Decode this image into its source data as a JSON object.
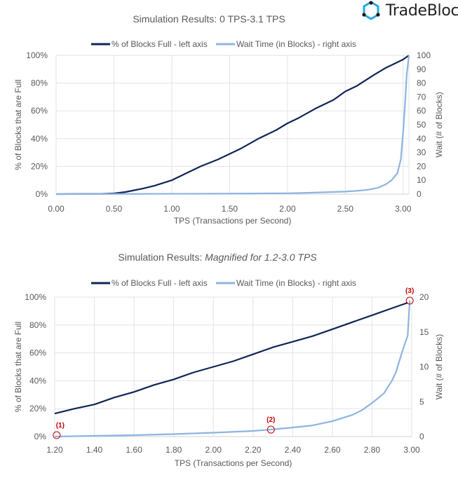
{
  "logo": {
    "text": "TradeBlock",
    "colors": {
      "hex": "#29a8e0",
      "dot": "#1a1a1a"
    }
  },
  "colors": {
    "dark": "#0f2557",
    "light": "#8db4e2",
    "grid": "#e3e3e3",
    "text": "#595959",
    "annotation": "#c00000"
  },
  "chart_data": [
    {
      "type": "line",
      "title": "Simulation  Results:  0 TPS-3.1 TPS",
      "title_italic": "",
      "xlabel": "TPS (Transactions per Second)",
      "ylabel": "% of Blocks that are Full",
      "y2label": "Wait (# of Blocks)",
      "xlim": [
        0,
        3.05
      ],
      "ylim": [
        0,
        100
      ],
      "y2lim": [
        0,
        100
      ],
      "xticks": [
        "0.00",
        "0.50",
        "1.00",
        "1.50",
        "2.00",
        "2.50",
        "3.00"
      ],
      "xtick_values": [
        0,
        0.5,
        1,
        1.5,
        2,
        2.5,
        3
      ],
      "yticks": [
        "0%",
        "20%",
        "40%",
        "60%",
        "80%",
        "100%"
      ],
      "ytick_values": [
        0,
        20,
        40,
        60,
        80,
        100
      ],
      "y2ticks": [
        "0",
        "10",
        "20",
        "30",
        "40",
        "50",
        "60",
        "70",
        "80",
        "90",
        "100"
      ],
      "y2tick_values": [
        0,
        10,
        20,
        30,
        40,
        50,
        60,
        70,
        80,
        90,
        100
      ],
      "legend": [
        "% of Blocks Full - left axis",
        "Wait Time (in Blocks) - right axis"
      ],
      "legend_position": "top",
      "grid": true,
      "series": [
        {
          "name": "% of Blocks Full - left axis",
          "axis": "left",
          "x": [
            0,
            0.4,
            0.5,
            0.6,
            0.75,
            0.85,
            1.0,
            1.1,
            1.25,
            1.4,
            1.5,
            1.6,
            1.75,
            1.9,
            2.0,
            2.1,
            2.25,
            2.4,
            2.5,
            2.6,
            2.75,
            2.85,
            2.9,
            3.0,
            3.05
          ],
          "y": [
            0,
            0.2,
            0.5,
            1.5,
            4,
            6,
            10,
            14,
            20,
            25,
            29,
            33,
            40,
            46,
            51,
            55,
            62,
            68,
            74,
            78,
            86,
            91,
            93,
            97,
            100
          ]
        },
        {
          "name": "Wait Time (in Blocks) - right axis",
          "axis": "right",
          "x": [
            0,
            1.4,
            2.0,
            2.2,
            2.5,
            2.6,
            2.7,
            2.78,
            2.85,
            2.9,
            2.95,
            2.98,
            3.0,
            3.02,
            3.03,
            3.05
          ],
          "y": [
            0,
            0.3,
            0.6,
            1,
            1.8,
            2.3,
            3.2,
            4.5,
            7,
            10,
            15,
            25,
            45,
            70,
            85,
            100
          ]
        }
      ],
      "annotations": []
    },
    {
      "type": "line",
      "title": "Simulation  Results:  ",
      "title_italic": "Magnified for 1.2-3.0 TPS",
      "xlabel": "TPS (Transactions per Second)",
      "ylabel": "% of Blocks that are Full",
      "y2label": "Wait (# of Blocks)",
      "xlim": [
        1.2,
        3.0
      ],
      "ylim": [
        0,
        100
      ],
      "y2lim": [
        0,
        20
      ],
      "xticks": [
        "1.20",
        "1.40",
        "1.60",
        "1.80",
        "2.00",
        "2.20",
        "2.40",
        "2.60",
        "2.80",
        "3.00"
      ],
      "xtick_values": [
        1.2,
        1.4,
        1.6,
        1.8,
        2.0,
        2.2,
        2.4,
        2.6,
        2.8,
        3.0
      ],
      "yticks": [
        "0%",
        "20%",
        "40%",
        "60%",
        "80%",
        "100%"
      ],
      "ytick_values": [
        0,
        20,
        40,
        60,
        80,
        100
      ],
      "y2ticks": [
        "0",
        "5",
        "10",
        "15",
        "20"
      ],
      "y2tick_values": [
        0,
        5,
        10,
        15,
        20
      ],
      "legend": [
        "% of Blocks Full - left axis",
        "Wait Time (in Blocks) - right axis"
      ],
      "legend_position": "top",
      "grid": true,
      "series": [
        {
          "name": "% of Blocks Full - left axis",
          "axis": "left",
          "x": [
            1.2,
            1.3,
            1.4,
            1.5,
            1.6,
            1.7,
            1.8,
            1.9,
            2.0,
            2.1,
            2.2,
            2.3,
            2.4,
            2.5,
            2.6,
            2.7,
            2.8,
            2.9,
            2.98
          ],
          "y": [
            16.5,
            20,
            23,
            28,
            32,
            37,
            41,
            46,
            50,
            54,
            59,
            64,
            68,
            72,
            77,
            82,
            87,
            92,
            96
          ]
        },
        {
          "name": "Wait Time (in Blocks) - right axis",
          "axis": "right",
          "x": [
            1.2,
            1.4,
            1.6,
            1.8,
            2.0,
            2.2,
            2.29,
            2.4,
            2.5,
            2.6,
            2.7,
            2.75,
            2.8,
            2.86,
            2.9,
            2.92,
            2.95,
            2.98,
            2.99
          ],
          "y": [
            0,
            0.1,
            0.2,
            0.35,
            0.55,
            0.8,
            1.0,
            1.3,
            1.6,
            2.2,
            3.1,
            3.8,
            4.8,
            6.2,
            8,
            9.2,
            12,
            14.5,
            19.5
          ]
        }
      ],
      "annotations": [
        {
          "label": "(1)",
          "x": 1.21,
          "y2": 0.2
        },
        {
          "label": "(2)",
          "x": 2.29,
          "y2": 1.0
        },
        {
          "label": "(3)",
          "x": 2.99,
          "y2": 19.5
        }
      ]
    }
  ]
}
